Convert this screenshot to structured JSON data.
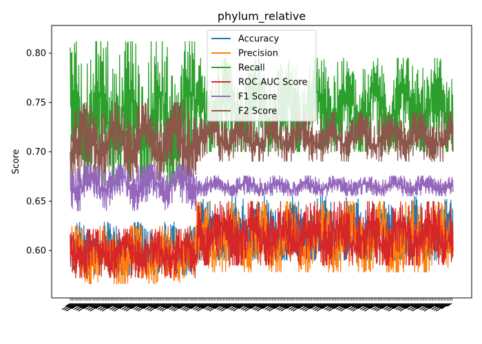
{
  "chart_data": {
    "type": "line",
    "title": "phylum_relative",
    "xlabel": "",
    "ylabel": "Score",
    "ylim": [
      0.552,
      0.828
    ],
    "yticks": [
      0.6,
      0.65,
      0.7,
      0.75,
      0.8
    ],
    "ytick_labels": [
      "0.60",
      "0.65",
      "0.70",
      "0.75",
      "0.80"
    ],
    "grid": false,
    "legend_position": "top-center",
    "n_points": 900,
    "series": [
      {
        "name": "Accuracy",
        "color": "#1f77b4",
        "phase1": {
          "low": 0.575,
          "high": 0.629,
          "mid": 0.6
        },
        "phase2": {
          "low": 0.59,
          "high": 0.655,
          "mid": 0.618
        }
      },
      {
        "name": "Precision",
        "color": "#ff7f0e",
        "phase1": {
          "low": 0.566,
          "high": 0.625,
          "mid": 0.596
        },
        "phase2": {
          "low": 0.578,
          "high": 0.65,
          "mid": 0.612
        }
      },
      {
        "name": "Recall",
        "color": "#2ca02c",
        "phase1": {
          "low": 0.665,
          "high": 0.812,
          "mid": 0.735
        },
        "phase2": {
          "low": 0.7,
          "high": 0.795,
          "mid": 0.745
        }
      },
      {
        "name": "ROC AUC Score",
        "color": "#d62728",
        "phase1": {
          "low": 0.572,
          "high": 0.622,
          "mid": 0.598
        },
        "phase2": {
          "low": 0.585,
          "high": 0.65,
          "mid": 0.615
        }
      },
      {
        "name": "F1 Score",
        "color": "#9467bd",
        "phase1": {
          "low": 0.64,
          "high": 0.687,
          "mid": 0.668
        },
        "phase2": {
          "low": 0.655,
          "high": 0.676,
          "mid": 0.665
        }
      },
      {
        "name": "F2 Score",
        "color": "#8c564b",
        "phase1": {
          "low": 0.67,
          "high": 0.75,
          "mid": 0.712
        },
        "phase2": {
          "low": 0.69,
          "high": 0.74,
          "mid": 0.715
        }
      }
    ]
  }
}
